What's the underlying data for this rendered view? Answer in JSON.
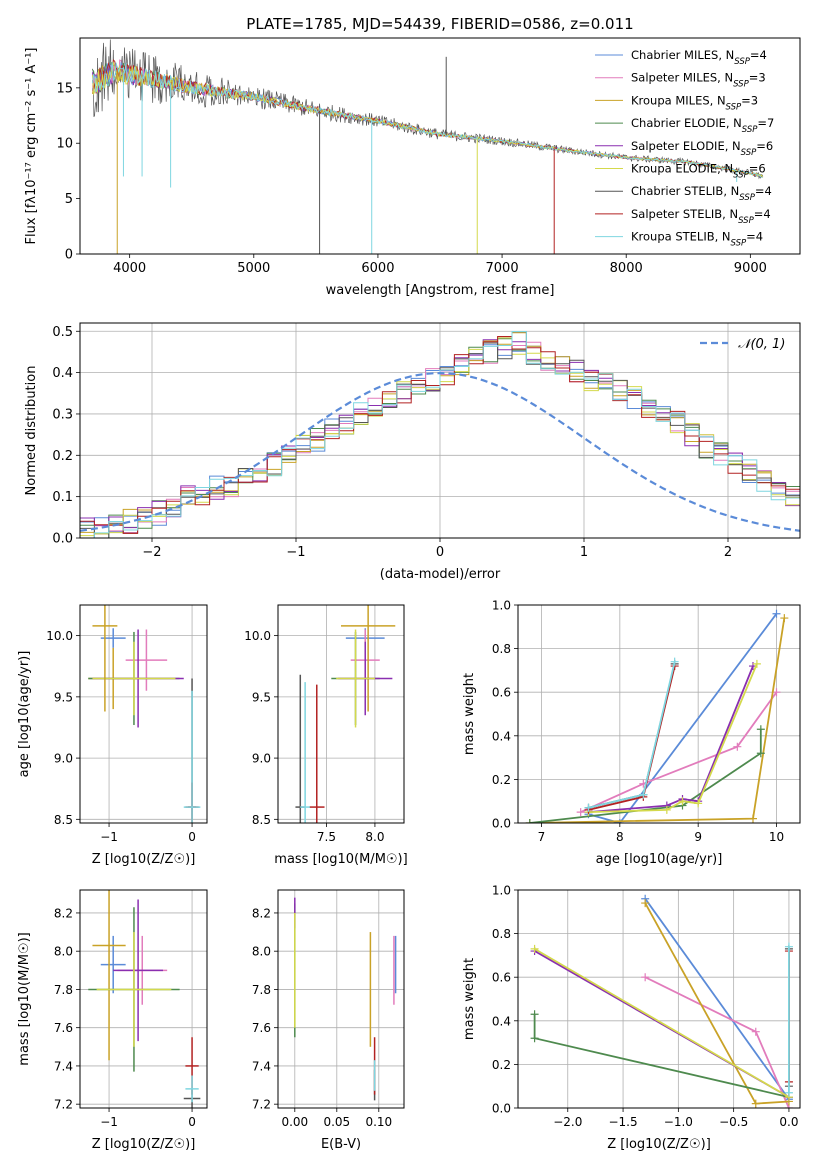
{
  "figure": {
    "title": "PLATE=1785, MJD=54439, FIBERID=0586, z=0.011"
  },
  "series_styles": [
    {
      "name": "Chabrier MILES",
      "nssp": "4",
      "color": "#5b8bd8"
    },
    {
      "name": "Salpeter MILES",
      "nssp": "3",
      "color": "#e27cbc"
    },
    {
      "name": "Kroupa MILES",
      "nssp": "3",
      "color": "#c9a227"
    },
    {
      "name": "Chabrier ELODIE",
      "nssp": "7",
      "color": "#4e8a4e"
    },
    {
      "name": "Salpeter ELODIE",
      "nssp": "6",
      "color": "#8a2fb0"
    },
    {
      "name": "Kroupa ELODIE",
      "nssp": "6",
      "color": "#d4d94c"
    },
    {
      "name": "Chabrier STELIB",
      "nssp": "4",
      "color": "#555555"
    },
    {
      "name": "Salpeter STELIB",
      "nssp": "4",
      "color": "#b22222"
    },
    {
      "name": "Kroupa STELIB",
      "nssp": "4",
      "color": "#7fd6e0"
    }
  ],
  "chart_data": [
    {
      "type": "line",
      "title": "PLATE=1785, MJD=54439, FIBERID=0586, z=0.011",
      "xlabel": "wavelength [Angstrom, rest frame]",
      "ylabel": "Flux [fλ10⁻¹⁷ erg cm⁻² s⁻¹ A⁻¹]",
      "xlim": [
        3600,
        9400
      ],
      "ylim": [
        0,
        19.5
      ],
      "xticks": [
        4000,
        5000,
        6000,
        7000,
        8000,
        9000
      ],
      "yticks": [
        0,
        5,
        10,
        15
      ],
      "grid": false,
      "legend": "upper right",
      "legend_entries": [
        "Chabrier MILES, N_SSP=4",
        "Salpeter MILES, N_SSP=3",
        "Kroupa MILES, N_SSP=3",
        "Chabrier ELODIE, N_SSP=7",
        "Salpeter ELODIE, N_SSP=6",
        "Kroupa ELODIE, N_SSP=6",
        "Chabrier STELIB, N_SSP=4",
        "Salpeter STELIB, N_SSP=4",
        "Kroupa STELIB, N_SSP=4"
      ],
      "continuum_points": [
        [
          3700,
          15.5
        ],
        [
          3900,
          16.6
        ],
        [
          4000,
          16.2
        ],
        [
          4200,
          15.8
        ],
        [
          4500,
          15.0
        ],
        [
          5000,
          14.2
        ],
        [
          5500,
          13.0
        ],
        [
          6000,
          12.0
        ],
        [
          6500,
          10.8
        ],
        [
          7000,
          10.2
        ],
        [
          7500,
          9.4
        ],
        [
          8000,
          8.7
        ],
        [
          8500,
          8.3
        ],
        [
          9000,
          7.3
        ],
        [
          9100,
          7.0
        ]
      ],
      "noise_amplitude": [
        [
          3700,
          3.5
        ],
        [
          4300,
          2.0
        ],
        [
          5000,
          1.0
        ],
        [
          6000,
          0.6
        ],
        [
          7000,
          0.4
        ],
        [
          8000,
          0.3
        ],
        [
          9100,
          0.3
        ]
      ],
      "dropouts": [
        [
          3900,
          0
        ],
        [
          3950,
          7
        ],
        [
          4100,
          7
        ],
        [
          4330,
          6
        ],
        [
          5530,
          0
        ],
        [
          5950,
          0
        ],
        [
          6550,
          17.8
        ],
        [
          6800,
          0
        ],
        [
          7420,
          0
        ],
        [
          8890,
          6.5
        ]
      ]
    },
    {
      "type": "histogram",
      "xlabel": "(data-model)/error",
      "ylabel": "Normed distribution",
      "xlim": [
        -2.5,
        2.5
      ],
      "ylim": [
        0,
        0.52
      ],
      "xticks": [
        -2,
        -1,
        0,
        1,
        2
      ],
      "yticks": [
        0.0,
        0.1,
        0.2,
        0.3,
        0.4,
        0.5
      ],
      "grid": true,
      "legend": "upper right",
      "reference": {
        "label": "𝒩(0, 1)",
        "mean": 0,
        "sigma": 1,
        "color": "#5b8bd8"
      },
      "bin_width": 0.1,
      "bin_start": -2.5,
      "base_values": [
        0.02,
        0.02,
        0.03,
        0.04,
        0.05,
        0.06,
        0.08,
        0.1,
        0.11,
        0.12,
        0.13,
        0.14,
        0.16,
        0.18,
        0.2,
        0.22,
        0.24,
        0.26,
        0.28,
        0.3,
        0.32,
        0.33,
        0.35,
        0.37,
        0.38,
        0.4,
        0.42,
        0.44,
        0.45,
        0.46,
        0.47,
        0.45,
        0.43,
        0.42,
        0.4,
        0.38,
        0.37,
        0.36,
        0.34,
        0.32,
        0.3,
        0.28,
        0.25,
        0.22,
        0.2,
        0.18,
        0.16,
        0.14,
        0.12,
        0.1,
        0.09,
        0.08,
        0.07,
        0.06,
        0.05,
        0.04,
        0.03,
        0.03,
        0.02,
        0.02
      ]
    },
    {
      "type": "errorbar",
      "xlabel": "Z [log10(Z/Z☉)]",
      "ylabel": "age  [log10(age/yr)]",
      "xlim": [
        -1.35,
        0.18
      ],
      "ylim": [
        8.47,
        10.25
      ],
      "xticks": [
        -1,
        0
      ],
      "yticks": [
        8.5,
        9.0,
        9.5,
        10.0
      ],
      "grid": true,
      "points": [
        {
          "series": 0,
          "x": -0.95,
          "y": 9.98,
          "xerr": 0.15,
          "yerr": 0.08
        },
        {
          "series": 1,
          "x": -0.55,
          "y": 9.8,
          "xerr": 0.25,
          "yerr": 0.25
        },
        {
          "series": 2,
          "x": -0.95,
          "y": 9.65,
          "xerr": 0.3,
          "yerr": 0.25
        },
        {
          "series": 3,
          "x": -0.7,
          "y": 9.65,
          "xerr": 0.55,
          "yerr": 0.38
        },
        {
          "series": 4,
          "x": -0.65,
          "y": 9.65,
          "xerr": 0.55,
          "yerr": 0.4
        },
        {
          "series": 5,
          "x": -0.7,
          "y": 9.65,
          "xerr": 0.5,
          "yerr": 0.3
        },
        {
          "series": 6,
          "x": 0.0,
          "y": 8.6,
          "xerr": 0.05,
          "yerr": 1.05
        },
        {
          "series": 7,
          "x": 0.0,
          "y": 8.6,
          "xerr": 0.08,
          "yerr": 0.2
        },
        {
          "series": 8,
          "x": 0.0,
          "y": 8.6,
          "xerr": 0.1,
          "yerr": 0.95
        },
        {
          "series": 2,
          "x": -1.05,
          "y": 10.08,
          "xerr": 0.15,
          "yerr": 0.7
        }
      ]
    },
    {
      "type": "errorbar",
      "xlabel": "mass [log10(M/M☉)]",
      "ylabel": "",
      "xlim": [
        7.0,
        8.3
      ],
      "ylim": [
        8.47,
        10.25
      ],
      "xticks": [
        7.5,
        8.0
      ],
      "yticks": [
        8.5,
        9.0,
        9.5,
        10.0
      ],
      "grid": true,
      "points": [
        {
          "series": 0,
          "x": 7.9,
          "y": 9.98,
          "xerr": 0.2,
          "yerr": 0.08
        },
        {
          "series": 1,
          "x": 7.9,
          "y": 9.8,
          "xerr": 0.15,
          "yerr": 0.25
        },
        {
          "series": 2,
          "x": 7.93,
          "y": 10.08,
          "xerr": 0.28,
          "yerr": 0.7
        },
        {
          "series": 3,
          "x": 7.8,
          "y": 9.65,
          "xerr": 0.25,
          "yerr": 0.38
        },
        {
          "series": 4,
          "x": 7.9,
          "y": 9.65,
          "xerr": 0.28,
          "yerr": 0.3
        },
        {
          "series": 5,
          "x": 7.8,
          "y": 9.65,
          "xerr": 0.2,
          "yerr": 0.4
        },
        {
          "series": 6,
          "x": 7.23,
          "y": 8.6,
          "xerr": 0.05,
          "yerr": 1.08
        },
        {
          "series": 7,
          "x": 7.4,
          "y": 8.6,
          "xerr": 0.08,
          "yerr": 1.0
        },
        {
          "series": 8,
          "x": 7.28,
          "y": 8.6,
          "xerr": 0.05,
          "yerr": 1.02
        }
      ]
    },
    {
      "type": "line",
      "xlabel": "age  [log10(age/yr)]",
      "ylabel": "mass weight",
      "xlim": [
        6.7,
        10.3
      ],
      "ylim": [
        0,
        1.0
      ],
      "xticks": [
        7,
        8,
        9,
        10
      ],
      "yticks": [
        0.0,
        0.2,
        0.4,
        0.6,
        0.8,
        1.0
      ],
      "grid": true,
      "series": [
        {
          "series": 0,
          "points": [
            [
              7.6,
              0.04
            ],
            [
              8.0,
              0.0
            ],
            [
              10.0,
              0.96
            ]
          ]
        },
        {
          "series": 1,
          "points": [
            [
              7.5,
              0.05
            ],
            [
              8.3,
              0.18
            ],
            [
              9.5,
              0.35
            ],
            [
              10.0,
              0.6
            ]
          ]
        },
        {
          "series": 2,
          "points": [
            [
              6.85,
              0.0
            ],
            [
              9.7,
              0.02
            ],
            [
              10.1,
              0.94
            ]
          ]
        },
        {
          "series": 3,
          "points": [
            [
              6.85,
              0.0
            ],
            [
              8.8,
              0.08
            ],
            [
              9.8,
              0.32
            ],
            [
              9.8,
              0.43
            ]
          ]
        },
        {
          "series": 4,
          "points": [
            [
              7.6,
              0.05
            ],
            [
              8.6,
              0.08
            ],
            [
              8.8,
              0.11
            ],
            [
              9.0,
              0.1
            ],
            [
              9.7,
              0.72
            ]
          ]
        },
        {
          "series": 5,
          "points": [
            [
              7.6,
              0.05
            ],
            [
              8.6,
              0.06
            ],
            [
              8.8,
              0.1
            ],
            [
              9.0,
              0.09
            ],
            [
              9.75,
              0.73
            ]
          ]
        },
        {
          "series": 6,
          "points": [
            [
              7.6,
              0.07
            ],
            [
              8.3,
              0.13
            ],
            [
              8.7,
              0.73
            ]
          ]
        },
        {
          "series": 7,
          "points": [
            [
              7.6,
              0.06
            ],
            [
              8.3,
              0.12
            ],
            [
              8.7,
              0.72
            ]
          ]
        },
        {
          "series": 8,
          "points": [
            [
              7.6,
              0.07
            ],
            [
              8.3,
              0.13
            ],
            [
              8.7,
              0.74
            ]
          ]
        }
      ]
    },
    {
      "type": "errorbar",
      "xlabel": "Z [log10(Z/Z☉)]",
      "ylabel": "mass [log10(M/M☉)]",
      "xlim": [
        -1.35,
        0.18
      ],
      "ylim": [
        7.18,
        8.32
      ],
      "xticks": [
        -1,
        0
      ],
      "yticks": [
        7.2,
        7.4,
        7.6,
        7.8,
        8.0,
        8.2
      ],
      "grid": true,
      "points": [
        {
          "series": 0,
          "x": -0.95,
          "y": 7.93,
          "xerr": 0.15,
          "yerr": 0.15
        },
        {
          "series": 1,
          "x": -0.6,
          "y": 7.9,
          "xerr": 0.3,
          "yerr": 0.18
        },
        {
          "series": 2,
          "x": -1.0,
          "y": 8.03,
          "xerr": 0.2,
          "yerr": 0.6
        },
        {
          "series": 3,
          "x": -0.7,
          "y": 7.8,
          "xerr": 0.55,
          "yerr": 0.43
        },
        {
          "series": 4,
          "x": -0.65,
          "y": 7.9,
          "xerr": 0.3,
          "yerr": 0.37
        },
        {
          "series": 5,
          "x": -0.7,
          "y": 7.8,
          "xerr": 0.45,
          "yerr": 0.3
        },
        {
          "series": 6,
          "x": 0.0,
          "y": 7.23,
          "xerr": 0.1,
          "yerr": 0.05
        },
        {
          "series": 7,
          "x": 0.0,
          "y": 7.4,
          "xerr": 0.08,
          "yerr": 0.15
        },
        {
          "series": 8,
          "x": 0.0,
          "y": 7.28,
          "xerr": 0.08,
          "yerr": 0.07
        }
      ]
    },
    {
      "type": "errorbar",
      "xlabel": "E(B-V)",
      "ylabel": "",
      "xlim": [
        -0.02,
        0.13
      ],
      "ylim": [
        7.18,
        8.32
      ],
      "xticks": [
        0.0,
        0.05,
        0.1
      ],
      "yticks": [
        7.2,
        7.4,
        7.6,
        7.8,
        8.0,
        8.2
      ],
      "grid": true,
      "points": [
        {
          "series": 0,
          "x": 0.12,
          "y": 7.93,
          "xerr": 0.0,
          "yerr": 0.15
        },
        {
          "series": 1,
          "x": 0.118,
          "y": 7.9,
          "xerr": 0.0,
          "yerr": 0.18
        },
        {
          "series": 2,
          "x": 0.09,
          "y": 7.8,
          "xerr": 0.0,
          "yerr": 0.3
        },
        {
          "series": 3,
          "x": 0.0,
          "y": 7.9,
          "xerr": 0.0,
          "yerr": 0.35
        },
        {
          "series": 4,
          "x": 0.0,
          "y": 8.2,
          "xerr": 0.0,
          "yerr": 0.08
        },
        {
          "series": 5,
          "x": 0.0,
          "y": 7.9,
          "xerr": 0.0,
          "yerr": 0.3
        },
        {
          "series": 6,
          "x": 0.095,
          "y": 7.3,
          "xerr": 0.0,
          "yerr": 0.08
        },
        {
          "series": 7,
          "x": 0.095,
          "y": 7.4,
          "xerr": 0.0,
          "yerr": 0.15
        },
        {
          "series": 8,
          "x": 0.095,
          "y": 7.35,
          "xerr": 0.0,
          "yerr": 0.08
        }
      ]
    },
    {
      "type": "line",
      "xlabel": "Z [log10(Z/Z☉)]",
      "ylabel": "mass weight",
      "xlim": [
        -2.45,
        0.1
      ],
      "ylim": [
        0,
        1.0
      ],
      "xticks": [
        -2.0,
        -1.5,
        -1.0,
        -0.5,
        0.0
      ],
      "yticks": [
        0.0,
        0.2,
        0.4,
        0.6,
        0.8,
        1.0
      ],
      "grid": true,
      "series": [
        {
          "series": 0,
          "points": [
            [
              -1.3,
              0.96
            ],
            [
              0.0,
              0.04
            ]
          ]
        },
        {
          "series": 1,
          "points": [
            [
              -1.3,
              0.6
            ],
            [
              -0.3,
              0.35
            ],
            [
              0.0,
              0.0
            ]
          ]
        },
        {
          "series": 2,
          "points": [
            [
              -1.3,
              0.94
            ],
            [
              -0.3,
              0.02
            ],
            [
              0.0,
              0.03
            ]
          ]
        },
        {
          "series": 3,
          "points": [
            [
              -2.3,
              0.43
            ],
            [
              -2.3,
              0.32
            ],
            [
              0.0,
              0.05
            ]
          ]
        },
        {
          "series": 4,
          "points": [
            [
              -2.3,
              0.72
            ],
            [
              0.0,
              0.05
            ]
          ]
        },
        {
          "series": 5,
          "points": [
            [
              -2.3,
              0.73
            ],
            [
              0.0,
              0.05
            ]
          ]
        },
        {
          "series": 6,
          "points": [
            [
              0.0,
              0.73
            ],
            [
              0.0,
              0.1
            ]
          ]
        },
        {
          "series": 7,
          "points": [
            [
              0.0,
              0.72
            ],
            [
              0.0,
              0.12
            ]
          ]
        },
        {
          "series": 8,
          "points": [
            [
              0.0,
              0.74
            ],
            [
              0.0,
              0.07
            ]
          ]
        }
      ]
    }
  ]
}
